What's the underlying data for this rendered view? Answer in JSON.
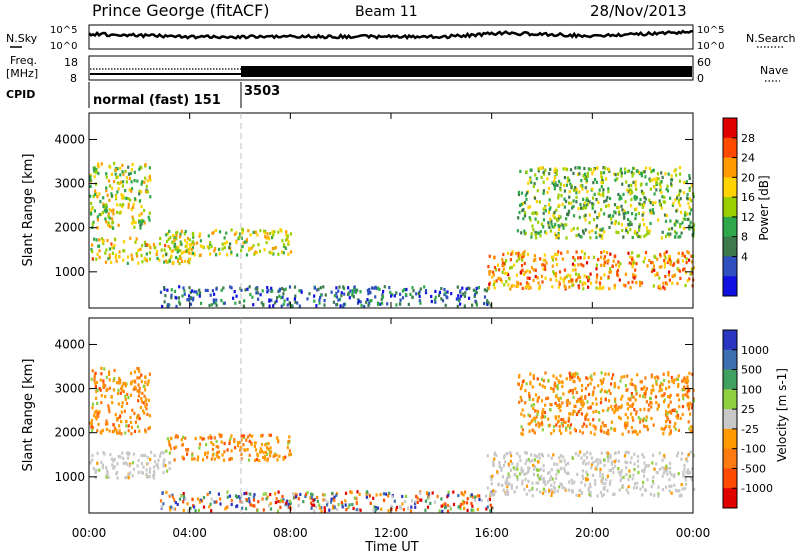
{
  "header": {
    "station": "Prince George (fitACF)",
    "beam": "Beam 11",
    "date": "28/Nov/2013"
  },
  "noise_panel": {
    "left_label": "N.Sky",
    "right_label": "N.Search",
    "left_ticks": [
      "10^5",
      "10^0"
    ],
    "right_ticks": [
      "10^5",
      "10^0"
    ]
  },
  "freq_panel": {
    "left_label_1": "Freq.",
    "left_label_2": "[MHz]",
    "left_ticks": [
      "18",
      "8"
    ],
    "right_label": "Nave",
    "right_ticks": [
      "60",
      "0"
    ]
  },
  "cpid_panel": {
    "label": "CPID",
    "segments": [
      "normal (fast) 151",
      "3503"
    ]
  },
  "x_axis": {
    "label": "Time UT",
    "ticks": [
      "00:00",
      "04:00",
      "08:00",
      "12:00",
      "16:00",
      "20:00",
      "00:00"
    ]
  },
  "chart_data": [
    {
      "type": "heatmap",
      "name": "power",
      "xlabel": "Time UT",
      "ylabel": "Slant Range [km]",
      "xlim": [
        0,
        24
      ],
      "ylim": [
        180,
        4600
      ],
      "yticks": [
        "1000",
        "2000",
        "3000",
        "4000"
      ],
      "colorbar": {
        "label": "Power [dB]",
        "ticks": [
          "28",
          "24",
          "20",
          "16",
          "12",
          "8",
          "4"
        ],
        "colors": [
          "#e00000",
          "#ff4a00",
          "#ff9a00",
          "#ffd200",
          "#9ad000",
          "#2ea84a",
          "#3c7a4e",
          "#3050c0",
          "#1010e0"
        ]
      },
      "echo_regions": [
        {
          "t": [
            0.0,
            2.4
          ],
          "r": [
            2000,
            3500
          ],
          "level": 16
        },
        {
          "t": [
            0.0,
            4.0
          ],
          "r": [
            1200,
            1800
          ],
          "level": 18
        },
        {
          "t": [
            3.0,
            8.0
          ],
          "r": [
            1400,
            2000
          ],
          "level": 16
        },
        {
          "t": [
            2.8,
            16.0
          ],
          "r": [
            250,
            700
          ],
          "level": 6
        },
        {
          "t": [
            15.8,
            24.0
          ],
          "r": [
            650,
            1500
          ],
          "level": 22
        },
        {
          "t": [
            17.0,
            24.0
          ],
          "r": [
            1800,
            3400
          ],
          "level": 13
        }
      ]
    },
    {
      "type": "heatmap",
      "name": "velocity",
      "xlabel": "Time UT",
      "ylabel": "Slant Range [km]",
      "xlim": [
        0,
        24
      ],
      "ylim": [
        180,
        4600
      ],
      "yticks": [
        "1000",
        "2000",
        "3000",
        "4000"
      ],
      "colorbar": {
        "label": "Velocity [m s-1]",
        "ticks": [
          "1000",
          "500",
          "100",
          "25",
          "-25",
          "-100",
          "-500",
          "-1000"
        ],
        "colors": [
          "#2a36c0",
          "#3c70b0",
          "#3fa060",
          "#8fd040",
          "#c8c8c8",
          "#ff9a00",
          "#ff7a10",
          "#ff4a00",
          "#e00000"
        ]
      },
      "echo_regions": [
        {
          "t": [
            0.0,
            2.4
          ],
          "r": [
            2000,
            3500
          ],
          "class": "-100"
        },
        {
          "t": [
            0.0,
            3.2
          ],
          "r": [
            1000,
            1600
          ],
          "class": "ground"
        },
        {
          "t": [
            3.0,
            8.0
          ],
          "r": [
            1400,
            2000
          ],
          "class": "-100"
        },
        {
          "t": [
            2.8,
            16.0
          ],
          "r": [
            250,
            700
          ],
          "class": "mixed"
        },
        {
          "t": [
            15.8,
            24.0
          ],
          "r": [
            600,
            1600
          ],
          "class": "ground"
        },
        {
          "t": [
            17.0,
            24.0
          ],
          "r": [
            2000,
            3400
          ],
          "class": "-100"
        }
      ]
    }
  ]
}
